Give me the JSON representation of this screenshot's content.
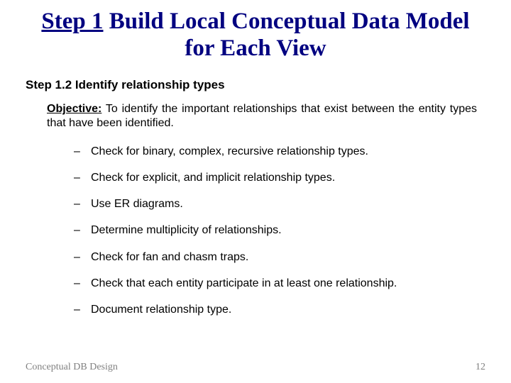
{
  "title": {
    "step_underlined": "Step 1",
    "rest": "Build Local Conceptual Data Model for Each View"
  },
  "subheading": "Step 1.2  Identify relationship types",
  "objective": {
    "label": "Objective:",
    "text": "To identify the important relationships that exist between the entity types that have been identified."
  },
  "bullets": [
    "Check for binary, complex, recursive relationship types.",
    "Check for explicit, and implicit relationship types.",
    "Use ER diagrams.",
    "Determine multiplicity of relationships.",
    "Check for fan and chasm traps.",
    "Check that each entity participate in at least one relationship.",
    "Document relationship type."
  ],
  "footer": {
    "left": "Conceptual DB Design",
    "page": "12"
  },
  "colors": {
    "title_color": "#000080",
    "body_color": "#000000",
    "footer_color": "#808080",
    "background": "#ffffff"
  },
  "typography": {
    "title_fontsize": 33,
    "subheading_fontsize": 17,
    "body_fontsize": 16,
    "footer_fontsize": 14,
    "title_font": "Times New Roman",
    "body_font": "Arial"
  }
}
